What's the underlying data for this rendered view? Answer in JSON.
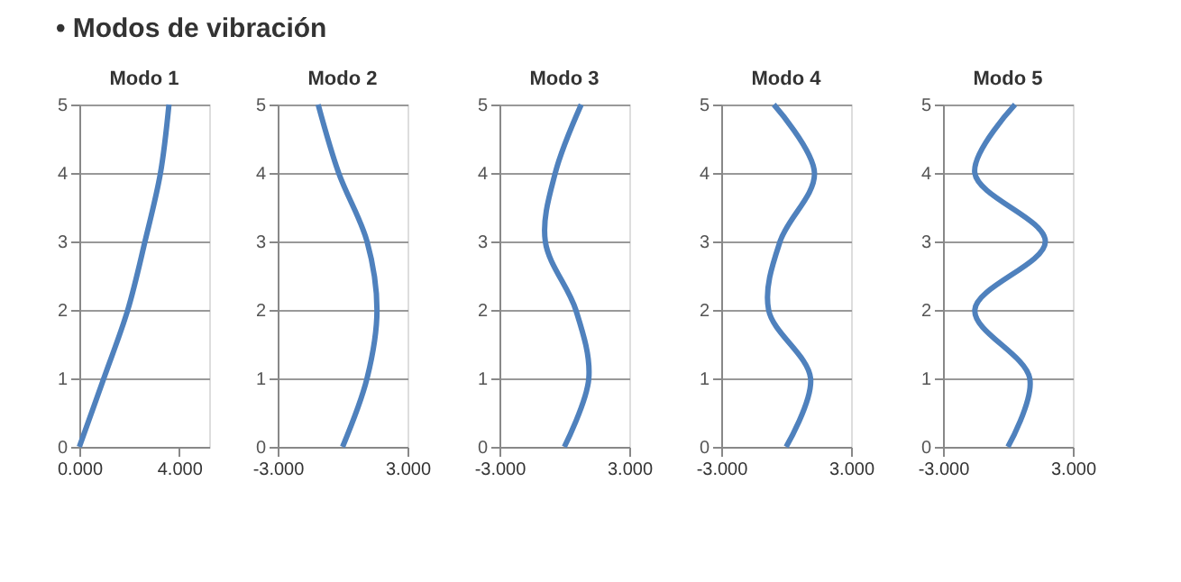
{
  "chart_data": [
    {
      "type": "line",
      "title": "Modo 1",
      "annotations": [
        "• Modos de vibración"
      ],
      "xlim": [
        0,
        5.2
      ],
      "xticks": [
        {
          "value": 0,
          "label": "0.000"
        },
        {
          "value": 4,
          "label": "4.000"
        }
      ],
      "ylim": [
        0,
        5
      ],
      "yticks": [
        0,
        1,
        2,
        3,
        4,
        5
      ],
      "grid": "y",
      "marker": "none",
      "line_style": "solid",
      "series": [
        {
          "color": "#4f81bd",
          "x": [
            0,
            0.98,
            1.94,
            2.63,
            3.25,
            3.59
          ],
          "values": [
            0,
            1,
            2,
            3,
            4,
            5
          ]
        }
      ]
    },
    {
      "type": "line",
      "title": "Modo 2",
      "xlim": [
        -3,
        3
      ],
      "xticks": [
        {
          "value": -3,
          "label": "-3.000"
        },
        {
          "value": 3,
          "label": "3.000"
        }
      ],
      "ylim": [
        0,
        5
      ],
      "yticks": [
        0,
        1,
        2,
        3,
        4,
        5
      ],
      "grid": "y",
      "marker": "none",
      "line_style": "solid",
      "series": [
        {
          "color": "#4f81bd",
          "x": [
            0,
            1.13,
            1.59,
            1.13,
            -0.18,
            -1.13
          ],
          "values": [
            0,
            1,
            2,
            3,
            4,
            5
          ]
        }
      ]
    },
    {
      "type": "line",
      "title": "Modo 3",
      "xlim": [
        -3,
        3
      ],
      "xticks": [
        {
          "value": -3,
          "label": "-3.000"
        },
        {
          "value": 3,
          "label": "3.000"
        }
      ],
      "ylim": [
        0,
        5
      ],
      "yticks": [
        0,
        1,
        2,
        3,
        4,
        5
      ],
      "grid": "y",
      "marker": "none",
      "line_style": "solid",
      "series": [
        {
          "color": "#4f81bd",
          "x": [
            0,
            1.13,
            0.53,
            -0.88,
            -0.42,
            0.78
          ],
          "values": [
            0,
            1,
            2,
            3,
            4,
            5
          ]
        }
      ]
    },
    {
      "type": "line",
      "title": "Modo 4",
      "xlim": [
        -3,
        3
      ],
      "xticks": [
        {
          "value": -3,
          "label": "-3.000"
        },
        {
          "value": 3,
          "label": "3.000"
        }
      ],
      "ylim": [
        0,
        5
      ],
      "yticks": [
        0,
        1,
        2,
        3,
        4,
        5
      ],
      "grid": "y",
      "marker": "none",
      "line_style": "solid",
      "series": [
        {
          "color": "#4f81bd",
          "x": [
            0,
            1.13,
            -0.81,
            -0.28,
            1.31,
            -0.57
          ],
          "values": [
            0,
            1,
            2,
            3,
            4,
            5
          ]
        }
      ]
    },
    {
      "type": "line",
      "title": "Modo 5",
      "xlim": [
        -3,
        3
      ],
      "xticks": [
        {
          "value": -3,
          "label": "-3.000"
        },
        {
          "value": 3,
          "label": "3.000"
        }
      ],
      "ylim": [
        0,
        5
      ],
      "yticks": [
        0,
        1,
        2,
        3,
        4,
        5
      ],
      "grid": "y",
      "marker": "none",
      "line_style": "solid",
      "series": [
        {
          "color": "#4f81bd",
          "x": [
            0,
            1.01,
            -1.53,
            1.73,
            -1.53,
            0.33
          ],
          "values": [
            0,
            1,
            2,
            3,
            4,
            5
          ]
        }
      ]
    }
  ]
}
